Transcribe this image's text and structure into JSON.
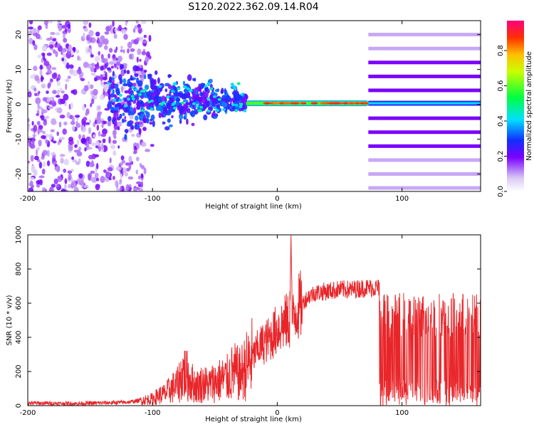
{
  "figure_title": "S120.2022.362.09.14.R04",
  "colors": {
    "snr_line": "#e8262a",
    "axis": "#000000",
    "background": "#ffffff"
  },
  "chart_data": [
    {
      "type": "heatmap",
      "name": "spectrogram",
      "title": "",
      "xlabel": "Height of straight line (km)",
      "ylabel": "Frequency (Hz)",
      "xlim": [
        -200,
        163
      ],
      "ylim": [
        -25,
        24
      ],
      "xticks": [
        "-200",
        "-100",
        "0",
        "100"
      ],
      "yticks": [
        "20",
        "10",
        "0",
        "-10",
        "-20"
      ],
      "xtick_values": [
        -200,
        -100,
        0,
        100
      ],
      "ytick_values": [
        20,
        10,
        0,
        -10,
        -20
      ],
      "colorbar": {
        "label": "Normalized spectral amplitude",
        "range": [
          0,
          0.97
        ],
        "ticks": [
          "0.0",
          "0.2",
          "0.4",
          "0.6",
          "0.8"
        ],
        "tick_values": [
          0.0,
          0.2,
          0.4,
          0.6,
          0.8
        ]
      },
      "regions": [
        {
          "name": "broadband noise",
          "x_range": [
            -200,
            -105
          ],
          "freq_range": [
            -25,
            24
          ],
          "amplitude": 0.1
        },
        {
          "name": "scattered echoes",
          "x_range": [
            -135,
            -25
          ],
          "freq_range": [
            -10,
            15
          ],
          "amplitude": 0.3
        },
        {
          "name": "main carrier line",
          "x_range": [
            -10,
            73
          ],
          "freq_center": 0.3,
          "amplitude": 0.95
        },
        {
          "name": "harmonic comb",
          "x_range": [
            73,
            163
          ],
          "freq_lines": [
            20,
            16,
            12,
            8,
            4,
            0,
            -4,
            -8,
            -12,
            -16,
            -20,
            -24
          ],
          "amplitude": 0.15
        }
      ]
    },
    {
      "type": "line",
      "name": "snr",
      "title": "",
      "xlabel": "Height of straight line (km)",
      "ylabel": "SNR (10 * v/v)",
      "xlim": [
        -200,
        163
      ],
      "ylim": [
        0,
        1000
      ],
      "xticks": [
        "-200",
        "-100",
        "0",
        "100"
      ],
      "yticks": [
        "1000",
        "800",
        "600",
        "400",
        "200",
        "0"
      ],
      "xtick_values": [
        -200,
        -100,
        0,
        100
      ],
      "ytick_values": [
        1000,
        800,
        600,
        400,
        200,
        0
      ],
      "series": [
        {
          "name": "SNR",
          "x": [
            -200,
            -160,
            -120,
            -110,
            -100,
            -95,
            -90,
            -85,
            -80,
            -75,
            -70,
            -65,
            -60,
            -55,
            -50,
            -45,
            -40,
            -35,
            -30,
            -25,
            -20,
            -15,
            -10,
            -5,
            0,
            5,
            10,
            11,
            12,
            15,
            20,
            25,
            30,
            40,
            50,
            60,
            70,
            82,
            83,
            90,
            100,
            110,
            120,
            130,
            140,
            150,
            163
          ],
          "values": [
            15,
            12,
            20,
            30,
            40,
            60,
            70,
            100,
            120,
            200,
            150,
            110,
            130,
            120,
            140,
            150,
            160,
            200,
            180,
            230,
            280,
            340,
            370,
            400,
            450,
            480,
            500,
            1000,
            480,
            560,
            600,
            640,
            660,
            670,
            680,
            680,
            690,
            690,
            300,
            310,
            320,
            310,
            315,
            320,
            310,
            315,
            300
          ]
        }
      ]
    }
  ]
}
